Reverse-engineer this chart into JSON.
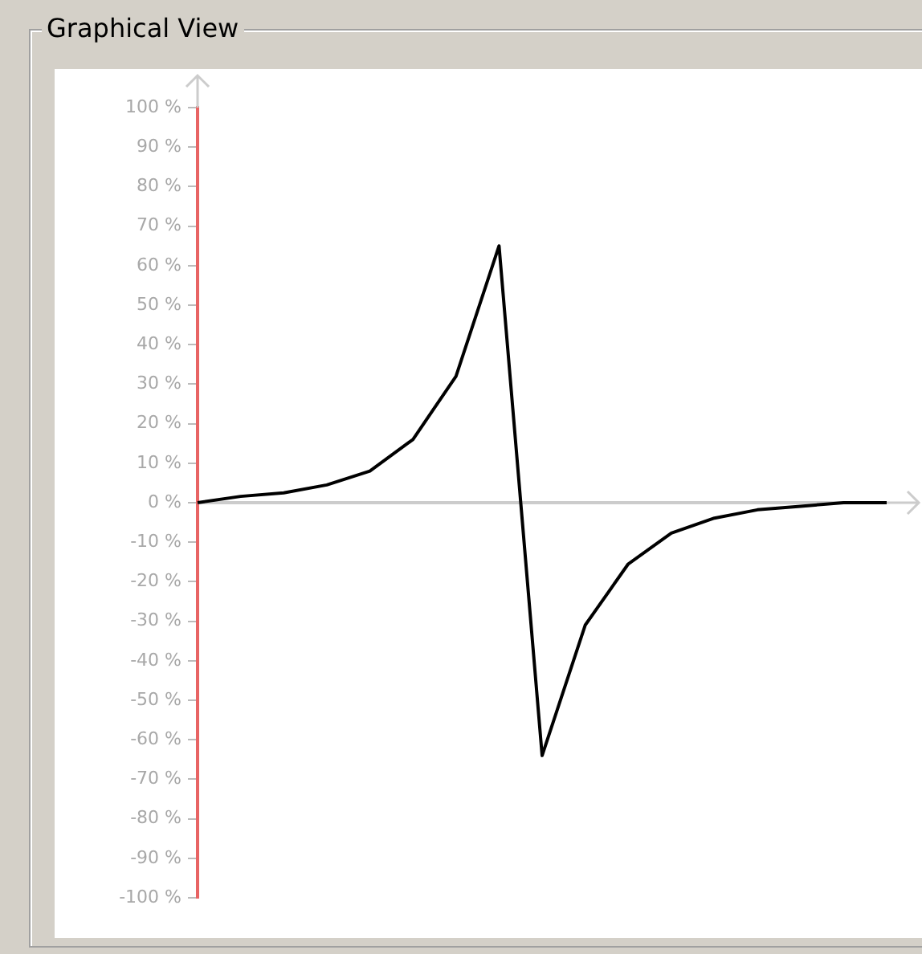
{
  "chart_data": {
    "type": "line",
    "title": "Graphical View",
    "categories": [
      null,
      null,
      null,
      null,
      null,
      null,
      null,
      null,
      null,
      null,
      null,
      null,
      null,
      null,
      null,
      null,
      null
    ],
    "series": [
      {
        "color": "#000000",
        "values": [
          0,
          1.6,
          2.5,
          4.5,
          8,
          16,
          32,
          65,
          -64,
          -31,
          -15.5,
          -7.7,
          -3.9,
          -1.8,
          -0.9,
          0,
          0
        ]
      }
    ],
    "ylim": [
      -100,
      100
    ],
    "yticks": [
      {
        "value": 100,
        "label": "100 %"
      },
      {
        "value": 90,
        "label": "90 %"
      },
      {
        "value": 80,
        "label": "80 %"
      },
      {
        "value": 70,
        "label": "70 %"
      },
      {
        "value": 60,
        "label": "60 %"
      },
      {
        "value": 50,
        "label": "50 %"
      },
      {
        "value": 40,
        "label": "40 %"
      },
      {
        "value": 30,
        "label": "30 %"
      },
      {
        "value": 20,
        "label": "20 %"
      },
      {
        "value": 10,
        "label": "10 %"
      },
      {
        "value": 0,
        "label": "0 %"
      },
      {
        "value": -10,
        "label": "-10 %"
      },
      {
        "value": -20,
        "label": "-20 %"
      },
      {
        "value": -30,
        "label": "-30 %"
      },
      {
        "value": -40,
        "label": "-40 %"
      },
      {
        "value": -50,
        "label": "-50 %"
      },
      {
        "value": -60,
        "label": "-60 %"
      },
      {
        "value": -70,
        "label": "-70 %"
      },
      {
        "value": -80,
        "label": "-80 %"
      },
      {
        "value": -90,
        "label": "-90 %"
      },
      {
        "value": -100,
        "label": "-100 %"
      }
    ],
    "tick_labels": "y",
    "marker": "none",
    "line_style": "solid",
    "legend": false
  }
}
